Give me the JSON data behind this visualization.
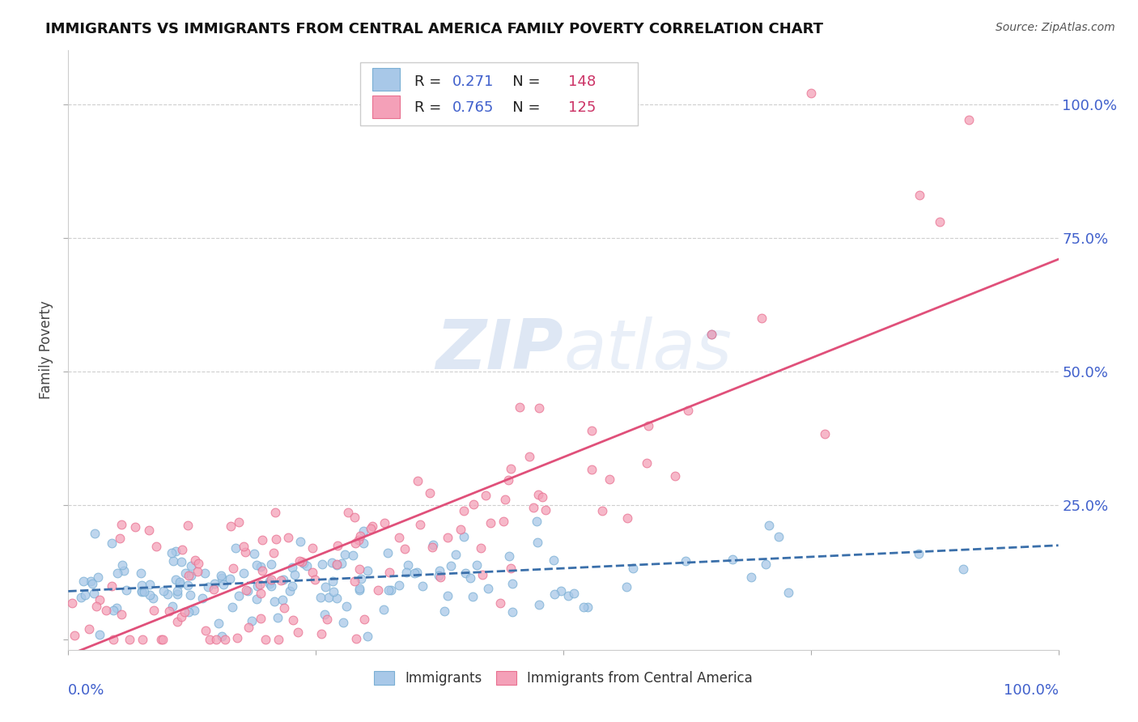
{
  "title": "IMMIGRANTS VS IMMIGRANTS FROM CENTRAL AMERICA FAMILY POVERTY CORRELATION CHART",
  "source": "Source: ZipAtlas.com",
  "ylabel": "Family Poverty",
  "blue_scatter_color": "#a8c8e8",
  "pink_scatter_color": "#f4a0b8",
  "blue_edge_color": "#7aafd4",
  "pink_edge_color": "#e87090",
  "blue_line_color": "#3a6faa",
  "pink_line_color": "#e0507a",
  "background_color": "#ffffff",
  "grid_color": "#bbbbbb",
  "title_color": "#111111",
  "axis_label_color": "#4060cc",
  "watermark_color": "#c8d8ee",
  "legend_R_color": "#4060cc",
  "legend_N_color": "#cc3366",
  "seed": 42,
  "blue_R": 0.271,
  "blue_N": 148,
  "pink_R": 0.765,
  "pink_N": 125
}
